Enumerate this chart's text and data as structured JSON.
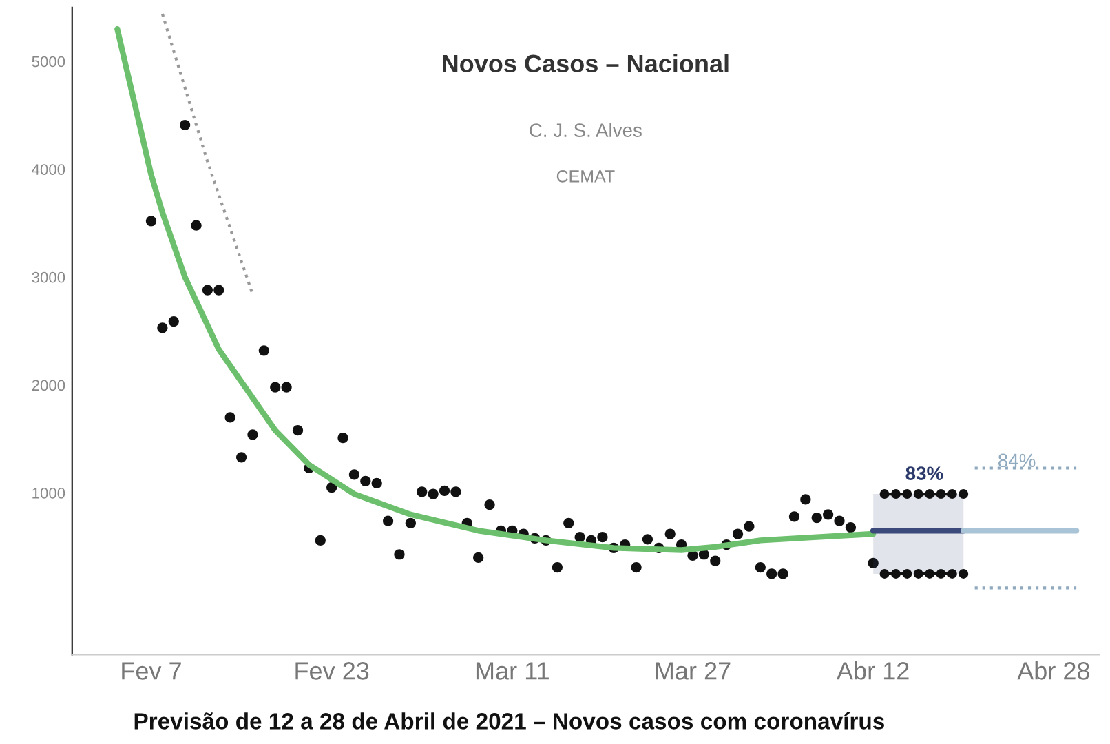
{
  "chart_data": {
    "type": "scatter",
    "title": "Novos Casos – Nacional",
    "subtitle": "C. J. S. Alves",
    "annotations": [
      "CEMAT",
      "Previsão de 12 a 28 de Abril de 2021 – Novos casos com coronavírus",
      "83%",
      "84%"
    ],
    "xlim": [
      "2021-01-31",
      "2021-05-02"
    ],
    "xticks": [
      {
        "value": "2021-02-07",
        "label": "Fev 7"
      },
      {
        "value": "2021-02-23",
        "label": "Fev 23"
      },
      {
        "value": "2021-03-11",
        "label": "Mar 11"
      },
      {
        "value": "2021-03-27",
        "label": "Mar 27"
      },
      {
        "value": "2021-04-12",
        "label": "Abr 12"
      },
      {
        "value": "2021-04-28",
        "label": "Abr 28"
      }
    ],
    "ylim": [
      -500,
      5500
    ],
    "yticks": [
      1000,
      2000,
      3000,
      4000,
      5000
    ],
    "grid": false,
    "legend": false,
    "series": [
      {
        "color": "#111111",
        "marker": "circle",
        "x": [
          "2021-02-07",
          "2021-02-08",
          "2021-02-09",
          "2021-02-10",
          "2021-02-11",
          "2021-02-12",
          "2021-02-13",
          "2021-02-14",
          "2021-02-15",
          "2021-02-16",
          "2021-02-17",
          "2021-02-18",
          "2021-02-19",
          "2021-02-20",
          "2021-02-21",
          "2021-02-22",
          "2021-02-23",
          "2021-02-24",
          "2021-02-25",
          "2021-02-26",
          "2021-02-27",
          "2021-02-28",
          "2021-03-01",
          "2021-03-02",
          "2021-03-03",
          "2021-03-04",
          "2021-03-05",
          "2021-03-06",
          "2021-03-07",
          "2021-03-08",
          "2021-03-09",
          "2021-03-10",
          "2021-03-11",
          "2021-03-12",
          "2021-03-13",
          "2021-03-14",
          "2021-03-15",
          "2021-03-16",
          "2021-03-17",
          "2021-03-18",
          "2021-03-19",
          "2021-03-20",
          "2021-03-21",
          "2021-03-22",
          "2021-03-23",
          "2021-03-24",
          "2021-03-25",
          "2021-03-26",
          "2021-03-27",
          "2021-03-28",
          "2021-03-29",
          "2021-03-30",
          "2021-03-31",
          "2021-04-01",
          "2021-04-02",
          "2021-04-03",
          "2021-04-04",
          "2021-04-05",
          "2021-04-06",
          "2021-04-07",
          "2021-04-08",
          "2021-04-09",
          "2021-04-10",
          "2021-04-12"
        ],
        "values": [
          3520,
          2530,
          2590,
          4410,
          3480,
          2880,
          2880,
          1700,
          1330,
          1540,
          2320,
          1980,
          1980,
          1580,
          1230,
          560,
          1050,
          1510,
          1170,
          1110,
          1090,
          740,
          430,
          720,
          1010,
          990,
          1020,
          1010,
          720,
          400,
          890,
          650,
          650,
          620,
          580,
          560,
          310,
          720,
          590,
          560,
          590,
          490,
          520,
          310,
          570,
          490,
          620,
          520,
          420,
          430,
          370,
          520,
          620,
          690,
          310,
          250,
          250,
          780,
          940,
          770,
          800,
          740,
          680,
          350
        ]
      },
      {
        "type": "line",
        "color": "#6cbf6c",
        "line_style": "solid",
        "x": [
          "2021-02-04",
          "2021-02-06",
          "2021-02-07",
          "2021-02-08",
          "2021-02-10",
          "2021-02-13",
          "2021-02-15",
          "2021-02-18",
          "2021-02-21",
          "2021-02-25",
          "2021-03-02",
          "2021-03-08",
          "2021-03-14",
          "2021-03-20",
          "2021-03-26",
          "2021-03-29",
          "2021-04-02",
          "2021-04-07",
          "2021-04-12"
        ],
        "values": [
          5300,
          4400,
          3950,
          3600,
          3000,
          2330,
          2030,
          1580,
          1260,
          990,
          800,
          650,
          560,
          490,
          470,
          500,
          560,
          590,
          620
        ]
      },
      {
        "type": "line",
        "color": "#999999",
        "line_style": "dotted",
        "x": [
          "2021-02-08",
          "2021-02-12",
          "2021-02-16"
        ],
        "values": [
          5440,
          4070,
          2840
        ]
      },
      {
        "type": "line",
        "color": "#3b4a7a",
        "line_style": "solid",
        "x": [
          "2021-04-12",
          "2021-04-20"
        ],
        "values": [
          650,
          650
        ],
        "lower": [
          250,
          250
        ],
        "upper": [
          990,
          990
        ]
      },
      {
        "type": "line",
        "color": "#111111",
        "line_style": "dashed",
        "marker": "circle",
        "x": [
          "2021-04-13",
          "2021-04-14",
          "2021-04-15",
          "2021-04-16",
          "2021-04-17",
          "2021-04-18",
          "2021-04-19",
          "2021-04-20"
        ],
        "values": [
          990,
          990,
          990,
          990,
          990,
          990,
          990,
          990
        ]
      },
      {
        "type": "line",
        "color": "#111111",
        "line_style": "dashed",
        "marker": "circle",
        "x": [
          "2021-04-13",
          "2021-04-14",
          "2021-04-15",
          "2021-04-16",
          "2021-04-17",
          "2021-04-18",
          "2021-04-19",
          "2021-04-20"
        ],
        "values": [
          250,
          250,
          250,
          250,
          250,
          250,
          250,
          250
        ]
      },
      {
        "type": "line",
        "color": "#a9c4d6",
        "line_style": "solid",
        "x": [
          "2021-04-20",
          "2021-04-30"
        ],
        "values": [
          650,
          650
        ]
      },
      {
        "type": "line",
        "color": "#8fa9bf",
        "line_style": "dotted",
        "x": [
          "2021-04-21",
          "2021-04-30"
        ],
        "values": [
          1230,
          1230
        ]
      },
      {
        "type": "line",
        "color": "#8fa9bf",
        "line_style": "dotted",
        "x": [
          "2021-04-21",
          "2021-04-30"
        ],
        "values": [
          120,
          120
        ]
      }
    ]
  }
}
